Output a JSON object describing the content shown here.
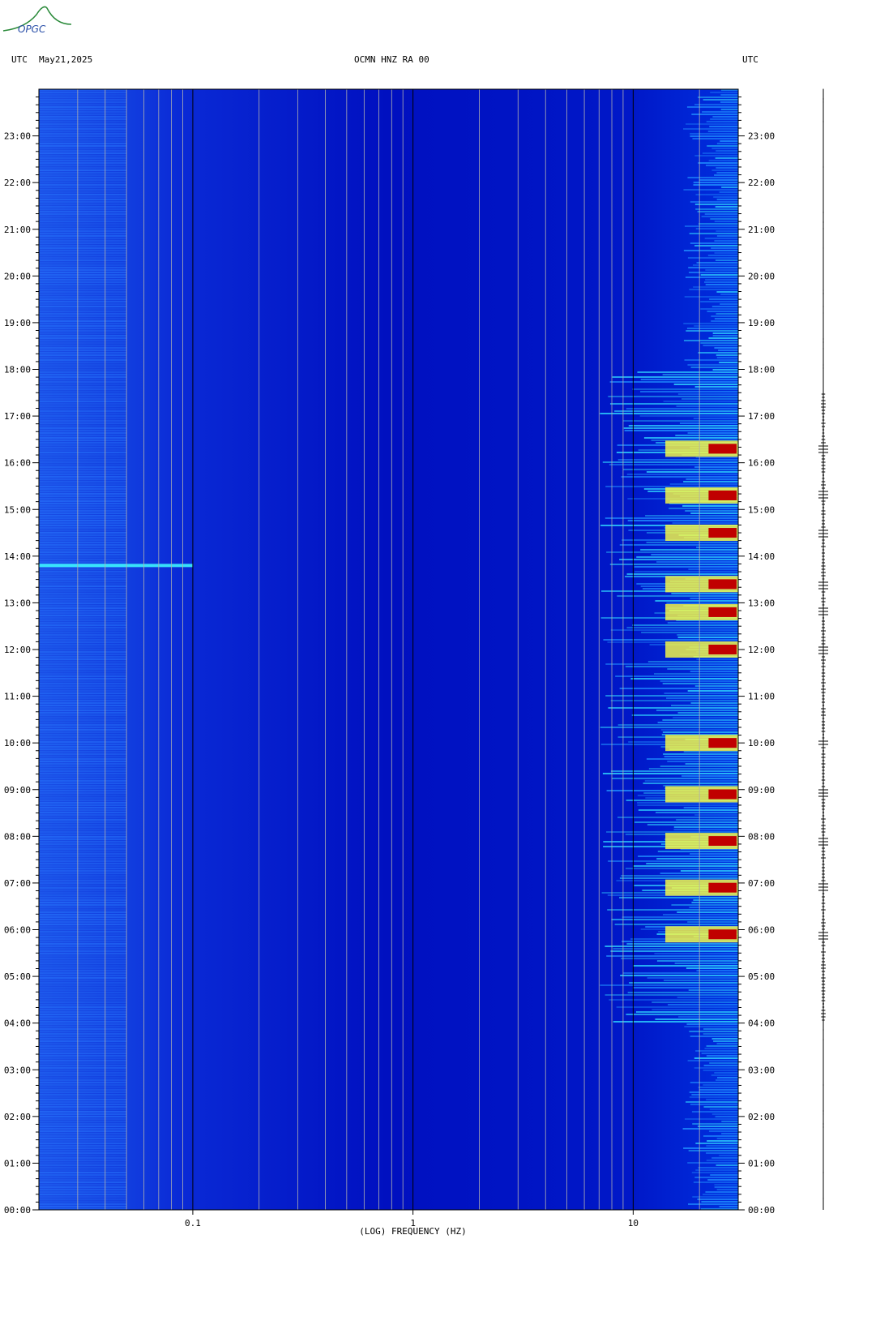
{
  "header": {
    "left_utc": "UTC",
    "date": "May21,2025",
    "station": "OCMN HNZ RA 00",
    "right_utc": "UTC"
  },
  "logo": {
    "text": "OPGC"
  },
  "chart_data": {
    "type": "heatmap",
    "title": "OCMN HNZ RA 00",
    "xlabel": "(LOG) FREQUENCY (HZ)",
    "ylabel": "",
    "x_scale": "log",
    "xlim": [
      0.02,
      30
    ],
    "x_ticks": [
      {
        "value": 0.1,
        "label": "0.1"
      },
      {
        "value": 1,
        "label": "1"
      },
      {
        "value": 10,
        "label": "10"
      }
    ],
    "ylim": [
      0,
      24
    ],
    "y_ticks": [
      "00:00",
      "01:00",
      "02:00",
      "03:00",
      "04:00",
      "05:00",
      "06:00",
      "07:00",
      "08:00",
      "09:00",
      "10:00",
      "11:00",
      "12:00",
      "13:00",
      "14:00",
      "15:00",
      "16:00",
      "17:00",
      "18:00",
      "19:00",
      "20:00",
      "21:00",
      "22:00",
      "23:00"
    ],
    "y_tick_hours": [
      0,
      1,
      2,
      3,
      4,
      5,
      6,
      7,
      8,
      9,
      10,
      11,
      12,
      13,
      14,
      15,
      16,
      17,
      18,
      19,
      20,
      21,
      22,
      23
    ],
    "colormap": [
      "#00008c",
      "#0000ff",
      "#0080ff",
      "#00ffff",
      "#ffff00",
      "#ff8000",
      "#ff0000",
      "#800000"
    ],
    "background_color": "#0000c8",
    "high_energy_band_hz": [
      10,
      30
    ],
    "notable_events_hours": [
      5.9,
      6.9,
      7.9,
      8.9,
      10.0,
      12.0,
      12.8,
      13.4,
      14.5,
      15.3,
      16.3
    ],
    "low_freq_band_event_hour": 13.8
  }
}
